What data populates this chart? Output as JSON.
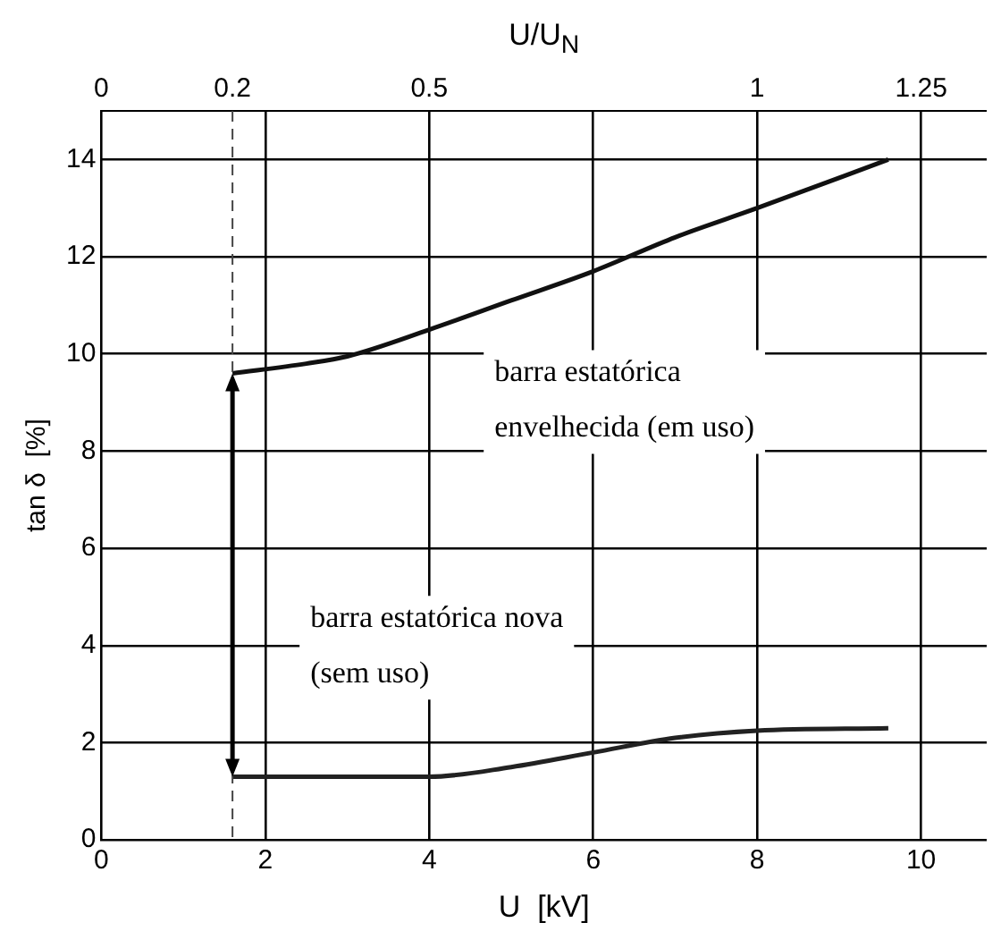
{
  "chart_data": {
    "type": "line",
    "xlabel": "U  [kV]",
    "ylabel": "tan δ  [%]",
    "x2label": "U/U$_{N}$",
    "xlim": [
      0,
      10.8
    ],
    "xticks": [
      0,
      2,
      4,
      6,
      8,
      10
    ],
    "x2lim": [
      0,
      1.35
    ],
    "x2ticks": [
      0,
      0.2,
      0.5,
      1,
      1.25
    ],
    "ylim": [
      0,
      15
    ],
    "yticks": [
      0,
      2,
      4,
      6,
      8,
      10,
      12,
      14
    ],
    "series": [
      {
        "color": "#111111",
        "x": [
          1.6,
          2.5,
          3,
          4,
          5,
          6,
          7,
          8,
          9.6
        ],
        "values": [
          9.6,
          9.8,
          9.95,
          10.5,
          11.1,
          11.7,
          12.4,
          13.0,
          14.0
        ]
      },
      {
        "color": "#222222",
        "x": [
          1.6,
          3,
          4,
          5,
          6,
          7,
          8,
          9.6
        ],
        "values": [
          1.3,
          1.3,
          1.3,
          1.5,
          1.8,
          2.1,
          2.25,
          2.3
        ]
      }
    ],
    "ref_lines": [
      {
        "axis": "x",
        "value": 1.6,
        "line_style": "dashed",
        "color": "#444444"
      }
    ],
    "annotations": [
      "barra estatórica\nenvelhecida (em uso)",
      "barra estatórica nova\n(sem uso)"
    ],
    "grid": true,
    "legend": false,
    "marker": "none",
    "line_style": "solid"
  }
}
